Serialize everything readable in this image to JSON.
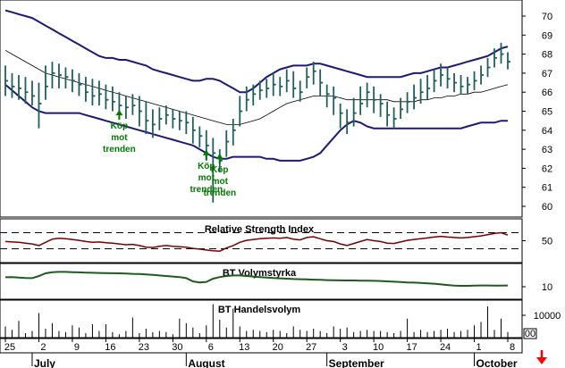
{
  "chart_data": [
    {
      "type": "candlestick-bollinger",
      "panel": "price",
      "ylim": [
        59.5,
        71
      ],
      "yticks": [
        "60",
        "61",
        "62",
        "63",
        "64",
        "65",
        "66",
        "67",
        "68",
        "69",
        "70"
      ],
      "x_start_date": "2008-06-25",
      "days": [
        "06-25",
        "06-26",
        "06-27",
        "06-30",
        "07-01",
        "07-02",
        "07-03",
        "07-04",
        "07-07",
        "07-08",
        "07-09",
        "07-10",
        "07-11",
        "07-14",
        "07-15",
        "07-16",
        "07-17",
        "07-18",
        "07-21",
        "07-22",
        "07-23",
        "07-24",
        "07-25",
        "07-28",
        "07-29",
        "07-30",
        "07-31",
        "08-01",
        "08-04",
        "08-05",
        "08-06",
        "08-07",
        "08-08",
        "08-11",
        "08-12",
        "08-13",
        "08-14",
        "08-15",
        "08-18",
        "08-19",
        "08-20",
        "08-21",
        "08-22",
        "08-25",
        "08-26",
        "08-27",
        "08-28",
        "08-29",
        "09-01",
        "09-02",
        "09-03",
        "09-04",
        "09-05",
        "09-08",
        "09-09",
        "09-10",
        "09-11",
        "09-12",
        "09-15",
        "09-16",
        "09-17",
        "09-18",
        "09-19",
        "09-22",
        "09-23",
        "09-24",
        "09-25",
        "09-26",
        "09-29",
        "09-30",
        "10-01",
        "10-02",
        "10-03",
        "10-06",
        "10-07",
        "10-08"
      ],
      "close": [
        66.6,
        66.3,
        66.2,
        66.0,
        65.8,
        65.4,
        66.3,
        67.0,
        66.9,
        66.8,
        66.6,
        66.4,
        66.0,
        65.8,
        65.9,
        65.6,
        65.5,
        65.3,
        65.2,
        65.3,
        65.0,
        64.5,
        64.3,
        64.6,
        64.8,
        64.6,
        64.5,
        64.4,
        64.0,
        63.7,
        63.2,
        62.8,
        62.4,
        63.4,
        64.0,
        65.0,
        65.6,
        65.9,
        66.1,
        66.2,
        66.4,
        66.3,
        66.6,
        66.2,
        66.0,
        66.8,
        67.1,
        66.5,
        65.9,
        65.7,
        64.9,
        64.4,
        64.9,
        65.4,
        66.0,
        65.6,
        65.4,
        64.8,
        64.6,
        65.1,
        65.5,
        65.7,
        66.0,
        66.2,
        66.6,
        66.9,
        66.7,
        66.5,
        66.3,
        66.4,
        66.6,
        66.9,
        67.3,
        67.8,
        68.0,
        67.6
      ],
      "high": [
        67.4,
        67.0,
        66.9,
        66.8,
        66.6,
        66.5,
        67.4,
        67.6,
        67.5,
        67.3,
        67.2,
        67.0,
        66.8,
        66.7,
        66.6,
        66.4,
        66.3,
        66.0,
        65.8,
        65.9,
        65.8,
        65.5,
        65.1,
        65.2,
        65.3,
        65.1,
        65.0,
        65.0,
        64.7,
        64.2,
        64.0,
        63.6,
        63.0,
        64.0,
        64.6,
        65.8,
        66.3,
        66.4,
        66.6,
        66.7,
        67.0,
        66.8,
        67.2,
        67.1,
        66.6,
        67.3,
        67.6,
        67.2,
        66.4,
        66.3,
        65.4,
        65.1,
        65.7,
        66.3,
        66.5,
        66.3,
        65.9,
        65.5,
        65.2,
        65.7,
        66.0,
        66.4,
        66.7,
        66.9,
        67.2,
        67.5,
        67.3,
        67.0,
        66.9,
        66.8,
        67.1,
        67.4,
        67.8,
        68.3,
        68.6,
        68.1
      ],
      "low": [
        65.8,
        65.7,
        65.6,
        65.4,
        65.3,
        64.1,
        65.6,
        66.2,
        66.2,
        66.2,
        66.0,
        65.8,
        65.5,
        65.3,
        65.3,
        65.1,
        65.0,
        64.8,
        64.6,
        64.8,
        64.2,
        63.8,
        63.6,
        64.0,
        64.3,
        64.1,
        64.0,
        63.8,
        63.3,
        63.1,
        62.4,
        60.2,
        61.8,
        62.6,
        63.2,
        64.2,
        65.0,
        65.3,
        65.6,
        65.7,
        65.8,
        65.8,
        66.0,
        65.7,
        65.5,
        66.2,
        66.4,
        65.8,
        65.2,
        64.8,
        64.1,
        63.8,
        64.2,
        64.8,
        65.2,
        64.9,
        64.7,
        64.2,
        64.1,
        64.6,
        64.9,
        65.1,
        65.4,
        65.6,
        66.0,
        66.3,
        66.2,
        66.0,
        65.9,
        65.9,
        66.1,
        66.4,
        66.8,
        67.3,
        67.5,
        67.2
      ],
      "bands": {
        "upper": [
          70.3,
          70.2,
          70.1,
          70.0,
          69.9,
          69.7,
          69.5,
          69.3,
          69.1,
          68.9,
          68.7,
          68.5,
          68.3,
          68.1,
          67.9,
          67.8,
          67.8,
          67.7,
          67.7,
          67.6,
          67.5,
          67.4,
          67.2,
          67.1,
          67.0,
          66.9,
          66.8,
          66.7,
          66.6,
          66.6,
          66.7,
          66.7,
          66.6,
          66.4,
          66.2,
          66.0,
          66.0,
          66.2,
          66.5,
          66.8,
          67.0,
          67.2,
          67.3,
          67.4,
          67.4,
          67.4,
          67.5,
          67.5,
          67.4,
          67.3,
          67.2,
          67.1,
          67.0,
          66.9,
          66.8,
          66.8,
          66.8,
          66.8,
          66.8,
          66.8,
          66.9,
          67.0,
          67.0,
          67.1,
          67.2,
          67.3,
          67.3,
          67.4,
          67.5,
          67.6,
          67.7,
          67.8,
          67.9,
          68.1,
          68.3,
          68.4
        ],
        "middle": [
          68.2,
          68.0,
          67.8,
          67.6,
          67.4,
          67.2,
          67.0,
          66.9,
          66.8,
          66.7,
          66.6,
          66.5,
          66.4,
          66.3,
          66.2,
          66.1,
          66.0,
          65.9,
          65.8,
          65.7,
          65.6,
          65.5,
          65.4,
          65.3,
          65.2,
          65.1,
          65.0,
          64.9,
          64.8,
          64.7,
          64.6,
          64.5,
          64.4,
          64.3,
          64.3,
          64.3,
          64.4,
          64.5,
          64.6,
          64.8,
          65.0,
          65.2,
          65.4,
          65.5,
          65.6,
          65.7,
          65.8,
          65.8,
          65.8,
          65.8,
          65.7,
          65.6,
          65.6,
          65.6,
          65.6,
          65.6,
          65.6,
          65.6,
          65.5,
          65.5,
          65.5,
          65.5,
          65.6,
          65.6,
          65.7,
          65.7,
          65.8,
          65.8,
          65.9,
          65.9,
          66.0,
          66.0,
          66.1,
          66.2,
          66.3,
          66.4
        ],
        "lower": [
          66.4,
          66.1,
          65.8,
          65.5,
          65.2,
          65.0,
          64.9,
          64.9,
          64.9,
          64.9,
          64.9,
          64.9,
          64.8,
          64.7,
          64.6,
          64.5,
          64.4,
          64.3,
          64.2,
          64.1,
          64.0,
          63.9,
          63.8,
          63.7,
          63.6,
          63.5,
          63.4,
          63.3,
          63.2,
          63.0,
          62.8,
          62.6,
          62.5,
          62.5,
          62.6,
          62.6,
          62.6,
          62.6,
          62.6,
          62.5,
          62.5,
          62.4,
          62.4,
          62.4,
          62.4,
          62.5,
          62.6,
          62.8,
          63.2,
          63.6,
          64.0,
          64.3,
          64.5,
          64.4,
          64.2,
          64.1,
          64.1,
          64.1,
          64.1,
          64.1,
          64.1,
          64.1,
          64.1,
          64.1,
          64.1,
          64.1,
          64.1,
          64.1,
          64.1,
          64.2,
          64.3,
          64.4,
          64.4,
          64.4,
          64.5,
          64.5
        ]
      },
      "signals": [
        {
          "day": "07-18",
          "price": 65.3,
          "label": [
            "Köp",
            "mot",
            "trenden"
          ]
        },
        {
          "day": "08-06",
          "price": 63.2,
          "label": [
            "Köp",
            "mot",
            "trenden"
          ]
        },
        {
          "day": "08-08",
          "price": 63.0,
          "label": [
            "Köp",
            "mot",
            "trenden"
          ]
        }
      ]
    },
    {
      "type": "line",
      "panel": "rsi",
      "title": "Relative Strength Index",
      "yticks": [
        "50"
      ],
      "ylim": [
        0,
        100
      ],
      "reference_lines": [
        30,
        70
      ],
      "values": [
        48,
        47,
        46,
        44,
        42,
        38,
        46,
        54,
        56,
        55,
        53,
        51,
        48,
        46,
        47,
        45,
        44,
        42,
        40,
        41,
        38,
        34,
        33,
        36,
        38,
        36,
        35,
        34,
        31,
        29,
        27,
        25,
        24,
        32,
        38,
        46,
        51,
        53,
        55,
        56,
        57,
        56,
        58,
        54,
        52,
        58,
        60,
        55,
        50,
        48,
        42,
        38,
        43,
        48,
        53,
        50,
        48,
        44,
        43,
        47,
        51,
        53,
        55,
        57,
        59,
        61,
        59,
        58,
        57,
        58,
        60,
        62,
        65,
        68,
        70,
        64
      ]
    },
    {
      "type": "line",
      "panel": "volume-strength",
      "title": "BT Volymstyrka",
      "yticks": [
        "10"
      ],
      "ylim": [
        0,
        30
      ],
      "values": [
        18.8,
        19.0,
        18.5,
        18.2,
        18.0,
        20.0,
        22.5,
        23.5,
        23.8,
        23.8,
        23.6,
        23.4,
        23.2,
        23.0,
        22.8,
        22.7,
        22.6,
        22.5,
        22.3,
        22.0,
        21.8,
        21.5,
        21.0,
        20.5,
        20.0,
        19.5,
        19.0,
        18.0,
        15.0,
        14.0,
        14.5,
        17.5,
        19.0,
        20.0,
        20.5,
        20.5,
        20.0,
        19.5,
        19.0,
        18.6,
        18.2,
        17.8,
        17.5,
        17.2,
        17.0,
        16.8,
        16.6,
        16.4,
        16.2,
        16.0,
        15.9,
        15.8,
        15.8,
        15.7,
        15.6,
        15.5,
        15.3,
        15.0,
        14.7,
        14.4,
        14.0,
        13.8,
        13.5,
        13.2,
        12.8,
        12.2,
        11.6,
        11.0,
        10.8,
        10.8,
        11.0,
        11.2,
        11.2,
        11.0,
        11.0,
        11.2
      ]
    },
    {
      "type": "bar",
      "panel": "volume",
      "title": "BT Handelsvolym",
      "yticks": [
        "10000"
      ],
      "unit_label": "00",
      "ylim": [
        0,
        16000
      ],
      "values": [
        5000,
        3500,
        7500,
        2000,
        3000,
        11000,
        4000,
        6500,
        3000,
        2500,
        5500,
        4500,
        2000,
        6000,
        3000,
        6000,
        2500,
        1500,
        3000,
        9000,
        2000,
        4000,
        2500,
        3000,
        2500,
        1500,
        8500,
        6500,
        4500,
        2000,
        5500,
        15000,
        8000,
        4500,
        13000,
        5000,
        3000,
        3500,
        3000,
        2500,
        3500,
        3000,
        2000,
        5000,
        3500,
        3000,
        4000,
        3000,
        2000,
        5000,
        4000,
        4500,
        2500,
        3000,
        3500,
        3000,
        3000,
        2500,
        2000,
        3000,
        8500,
        2500,
        3500,
        2500,
        3000,
        3500,
        4000,
        2500,
        3000,
        3500,
        5500,
        7000,
        14000,
        3500,
        8500,
        2500
      ]
    },
    {
      "type": "axis",
      "panel": "date-axis",
      "day_ticks": [
        {
          "day": "06-25",
          "label": "25"
        },
        {
          "day": "07-02",
          "label": "2"
        },
        {
          "day": "07-09",
          "label": "9"
        },
        {
          "day": "07-16",
          "label": "16"
        },
        {
          "day": "07-23",
          "label": "23"
        },
        {
          "day": "07-30",
          "label": "30"
        },
        {
          "day": "08-06",
          "label": "6"
        },
        {
          "day": "08-13",
          "label": "13"
        },
        {
          "day": "08-20",
          "label": "20"
        },
        {
          "day": "08-27",
          "label": "27"
        },
        {
          "day": "09-03",
          "label": "3"
        },
        {
          "day": "09-10",
          "label": "10"
        },
        {
          "day": "09-17",
          "label": "17"
        },
        {
          "day": "09-24",
          "label": "24"
        },
        {
          "day": "10-01",
          "label": "1"
        },
        {
          "day": "10-08",
          "label": "8"
        }
      ],
      "months": [
        {
          "day": "07-01",
          "label": "July"
        },
        {
          "day": "08-01",
          "label": "August"
        },
        {
          "day": "09-01",
          "label": "September"
        },
        {
          "day": "10-01",
          "label": "October"
        }
      ]
    }
  ],
  "colors": {
    "candle": "#1f5f5f",
    "band": "#1a1a7a",
    "midline": "#000000",
    "rsi": "#7a0000",
    "volume_strength": "#1f5a1f",
    "volume": "#000000",
    "signal": "#007a00",
    "down_arrow": "#ff0000"
  },
  "icons": {
    "corner": "down-arrow-icon"
  }
}
